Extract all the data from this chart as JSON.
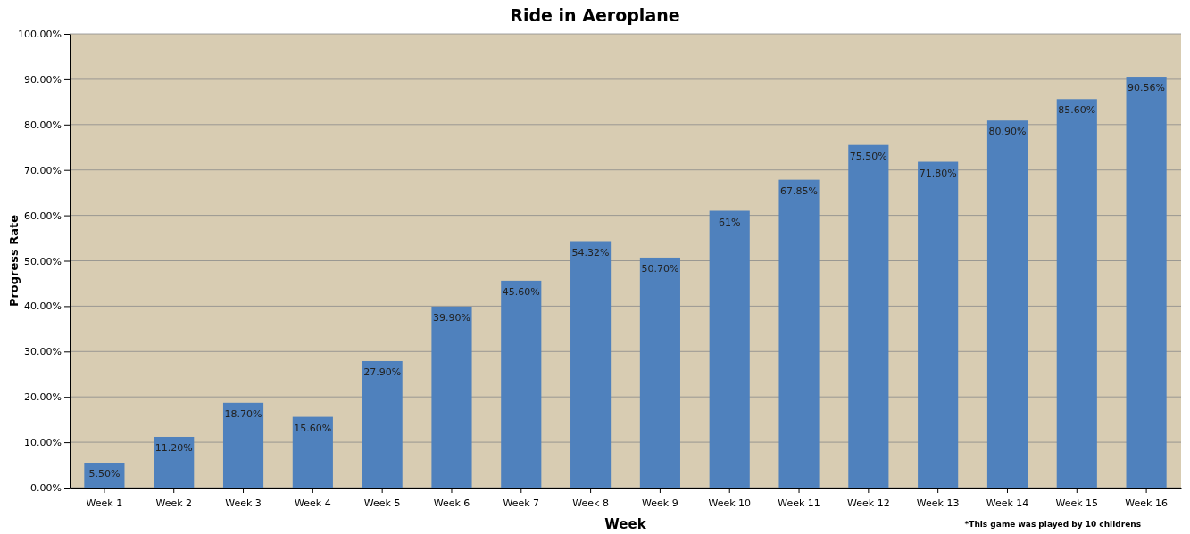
{
  "chart_data": {
    "type": "bar",
    "title": "Ride in Aeroplane",
    "xlabel": "Week",
    "ylabel": "Progress Rate",
    "categories": [
      "Week 1",
      "Week 2",
      "Week 3",
      "Week 4",
      "Week 5",
      "Week 6",
      "Week 7",
      "Week 8",
      "Week 9",
      "Week 10",
      "Week 11",
      "Week 12",
      "Week 13",
      "Week 14",
      "Week 15",
      "Week 16"
    ],
    "values": [
      5.5,
      11.2,
      18.7,
      15.6,
      27.9,
      39.9,
      45.6,
      54.32,
      50.7,
      61,
      67.85,
      75.5,
      71.8,
      80.9,
      85.6,
      90.56
    ],
    "value_labels": [
      "5.50%",
      "11.20%",
      "18.70%",
      "15.60%",
      "27.90%",
      "39.90%",
      "45.60%",
      "54.32%",
      "50.70%",
      "61%",
      "67.85%",
      "75.50%",
      "71.80%",
      "80.90%",
      "85.60%",
      "90.56%"
    ],
    "color": "#4f81bd",
    "ylim": [
      0,
      100
    ],
    "yticks": [
      {
        "value": 0,
        "label": "0.00%"
      },
      {
        "value": 10,
        "label": "10.00%"
      },
      {
        "value": 20,
        "label": "20.00%"
      },
      {
        "value": 30,
        "label": "30.00%"
      },
      {
        "value": 40,
        "label": "40.00%"
      },
      {
        "value": 50,
        "label": "50.00%"
      },
      {
        "value": 60,
        "label": "60.00%"
      },
      {
        "value": 70,
        "label": "70.00%"
      },
      {
        "value": 80,
        "label": "80.00%"
      },
      {
        "value": 90,
        "label": "90.00%"
      },
      {
        "value": 100,
        "label": "100.00%"
      }
    ],
    "grid": "y",
    "annotations": [
      "*This game was played by  10 childrens"
    ]
  }
}
